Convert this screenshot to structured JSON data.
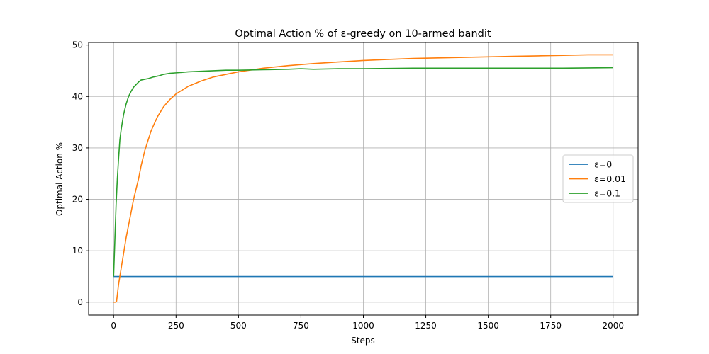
{
  "chart_data": {
    "type": "line",
    "title": "Optimal Action % of ε-greedy on 10-armed bandit",
    "xlabel": "Steps",
    "ylabel": "Optimal Action %",
    "xlim": [
      -100,
      2100
    ],
    "ylim": [
      -2.5,
      50.5
    ],
    "xticks": [
      0,
      250,
      500,
      750,
      1000,
      1250,
      1500,
      1750,
      2000
    ],
    "yticks": [
      0,
      10,
      20,
      30,
      40,
      50
    ],
    "grid": true,
    "legend_position": "center-right",
    "series": [
      {
        "name": "ε=0",
        "color": "#1f77b4",
        "x": [
          0,
          2000
        ],
        "y": [
          5.0,
          5.0
        ]
      },
      {
        "name": "ε=0.01",
        "color": "#ff7f0e",
        "x": [
          0,
          8,
          12,
          20,
          30,
          40,
          50,
          60,
          70,
          80,
          90,
          100,
          110,
          125,
          150,
          175,
          200,
          225,
          250,
          300,
          350,
          400,
          450,
          500,
          600,
          700,
          800,
          900,
          1000,
          1100,
          1200,
          1300,
          1400,
          1500,
          1600,
          1700,
          1800,
          1900,
          2000
        ],
        "y": [
          0,
          0,
          0.2,
          3.5,
          6.5,
          9.5,
          12.5,
          15.0,
          17.5,
          20.0,
          22.0,
          24.0,
          26.5,
          29.5,
          33.3,
          36.0,
          38.0,
          39.4,
          40.5,
          42.0,
          43.0,
          43.8,
          44.3,
          44.8,
          45.5,
          46.0,
          46.4,
          46.7,
          47.0,
          47.2,
          47.4,
          47.5,
          47.6,
          47.7,
          47.8,
          47.9,
          48.0,
          48.1,
          48.1
        ]
      },
      {
        "name": "ε=0.1",
        "color": "#2ca02c",
        "x": [
          0,
          5,
          10,
          15,
          20,
          25,
          30,
          40,
          50,
          60,
          70,
          80,
          90,
          100,
          110,
          120,
          140,
          160,
          180,
          200,
          225,
          250,
          300,
          350,
          400,
          450,
          500,
          600,
          700,
          750,
          800,
          900,
          1000,
          1200,
          1400,
          1500,
          1600,
          1800,
          2000
        ],
        "y": [
          5.0,
          12.0,
          19.0,
          24.0,
          28.0,
          31.5,
          33.5,
          36.5,
          38.5,
          40.0,
          41.0,
          41.8,
          42.3,
          42.8,
          43.2,
          43.3,
          43.5,
          43.8,
          44.0,
          44.3,
          44.5,
          44.6,
          44.8,
          44.9,
          45.0,
          45.1,
          45.1,
          45.2,
          45.3,
          45.4,
          45.3,
          45.4,
          45.4,
          45.5,
          45.5,
          45.5,
          45.5,
          45.5,
          45.6
        ]
      }
    ]
  }
}
